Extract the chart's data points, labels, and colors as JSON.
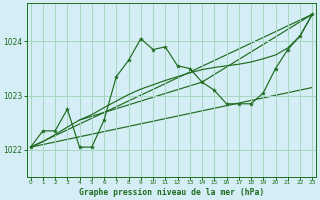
{
  "title": "Graphe pression niveau de la mer (hPa)",
  "background_color": "#d5eef5",
  "grid_color": "#a8d5c2",
  "line_color": "#1e6b1e",
  "ylim": [
    1021.5,
    1024.7
  ],
  "xlim": [
    -0.3,
    23.3
  ],
  "yticks": [
    1022,
    1023,
    1024
  ],
  "xticks": [
    0,
    1,
    2,
    3,
    4,
    5,
    6,
    7,
    8,
    9,
    10,
    11,
    12,
    13,
    14,
    15,
    16,
    17,
    18,
    19,
    20,
    21,
    22,
    23
  ],
  "series_main": {
    "x": [
      0,
      1,
      2,
      3,
      4,
      5,
      6,
      7,
      8,
      9,
      10,
      11,
      12,
      13,
      14,
      15,
      16,
      17,
      18,
      19,
      20,
      21,
      22,
      23
    ],
    "y": [
      1022.05,
      1022.35,
      1022.35,
      1022.75,
      1022.05,
      1022.05,
      1022.55,
      1023.35,
      1023.65,
      1024.05,
      1023.85,
      1023.9,
      1023.55,
      1023.5,
      1023.25,
      1023.1,
      1022.85,
      1022.85,
      1022.85,
      1023.05,
      1023.5,
      1023.85,
      1024.1,
      1024.5
    ]
  },
  "series_smooth": {
    "x": [
      0,
      1,
      2,
      3,
      4,
      5,
      6,
      7,
      8,
      9,
      10,
      11,
      12,
      13,
      14,
      15,
      16,
      17,
      18,
      19,
      20,
      21,
      22,
      23
    ],
    "y": [
      1022.05,
      1022.15,
      1022.28,
      1022.42,
      1022.55,
      1022.65,
      1022.78,
      1022.9,
      1023.02,
      1023.12,
      1023.2,
      1023.28,
      1023.35,
      1023.42,
      1023.48,
      1023.52,
      1023.55,
      1023.58,
      1023.62,
      1023.68,
      1023.75,
      1023.88,
      1024.1,
      1024.5
    ]
  },
  "series_line3": {
    "x": [
      0,
      23
    ],
    "y": [
      1022.05,
      1024.5
    ]
  },
  "series_line4": {
    "x": [
      0,
      23
    ],
    "y": [
      1022.05,
      1023.15
    ]
  },
  "series_line5": {
    "x": [
      4,
      14,
      23
    ],
    "y": [
      1022.55,
      1023.25,
      1024.5
    ]
  }
}
